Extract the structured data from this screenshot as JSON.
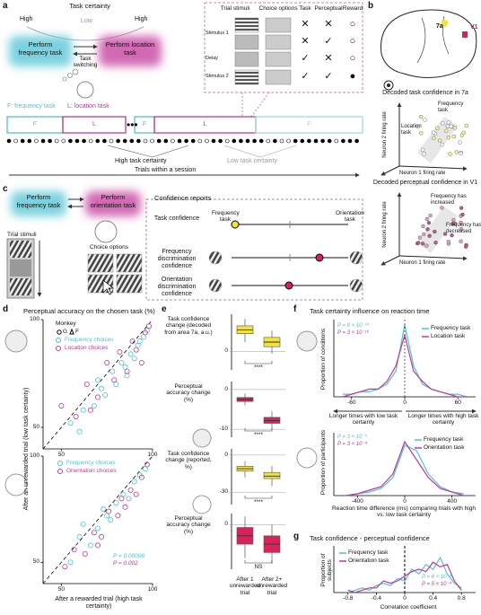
{
  "a": {
    "label": "a",
    "task_certainty": "Task certainty",
    "high_left": "High",
    "low": "Low",
    "high_right": "High",
    "box_frequency": "Perform frequency task",
    "switching": "Task switching",
    "box_location": "Perform location task",
    "table": {
      "headers": [
        "Trial stimuli",
        "Choice options",
        "Task",
        "Perceptual",
        "Reward"
      ],
      "row_labels": [
        "Stimulus 1",
        "Delay",
        "Stimulus 2"
      ],
      "cells": [
        [
          "✕",
          "✕",
          "○"
        ],
        [
          "✕",
          "✓",
          "○"
        ],
        [
          "✓",
          "✕",
          "○"
        ],
        [
          "✓",
          "✓",
          "●"
        ]
      ]
    },
    "legend_f": "F: frequency task",
    "legend_l": "L: location task",
    "blocks": [
      "F",
      "L",
      "F",
      "L",
      "F"
    ],
    "high_certainty": "High task certainty",
    "low_certainty": "Low task certainty",
    "trials": "Trials within a session"
  },
  "b": {
    "label": "b",
    "area_7a": "7a",
    "area_v1": "V1",
    "title_7a": "Decoded task confidence in 7a",
    "frequency_task": "Frequency task",
    "location_task": "Location task",
    "neuron2": "Neuron 2 firing rate",
    "neuron1": "Neuron 1 firing rate",
    "title_v1": "Decoded perceptual confidence in V1",
    "increased": "Frequency has increased",
    "decreased": "Frequency has decreased"
  },
  "c": {
    "label": "c",
    "box_frequency": "Perform frequency task",
    "box_orientation": "Perform orientation task",
    "trial_stimuli": "Trial stimuli",
    "choice_options": "Choice options",
    "reports": "Confidence reports",
    "task_confidence": "Task confidence",
    "frequency_task": "Frequency task",
    "orientation_task": "Orientation task",
    "freq_confidence": "Frequency discrimination confidence",
    "ori_confidence": "Orientation discrimination confidence"
  },
  "d": {
    "label": "d",
    "title": "Perceptual accuracy on the chosen task (%)",
    "ylabel": "After an unrewarded trial (low task certainty)",
    "xlabel": "After a rewarded trial (high task certainty)",
    "monkey": {
      "xlim": [
        40,
        100
      ],
      "ylim": [
        40,
        100
      ],
      "xticks": [
        50,
        100
      ],
      "yticks": [
        50,
        100
      ],
      "legend_title": "Monkey",
      "subjects": [
        "G",
        "F"
      ],
      "series": [
        {
          "name": "Frequency choices",
          "color": "#4fc3d4",
          "x": [
            55,
            62,
            68,
            70,
            74,
            78,
            80,
            83,
            85,
            88,
            90,
            92,
            95,
            97,
            60,
            72,
            86,
            93
          ],
          "y": [
            52,
            58,
            60,
            72,
            65,
            76,
            70,
            80,
            78,
            84,
            82,
            88,
            92,
            95,
            48,
            68,
            74,
            90
          ]
        },
        {
          "name": "Location choices",
          "color": "#c2389a",
          "x": [
            50,
            58,
            64,
            70,
            75,
            79,
            82,
            86,
            89,
            91,
            94,
            96,
            98,
            66
          ],
          "y": [
            60,
            55,
            70,
            64,
            80,
            72,
            85,
            76,
            90,
            86,
            80,
            94,
            97,
            58
          ]
        }
      ]
    },
    "human": {
      "xlim": [
        40,
        100
      ],
      "ylim": [
        40,
        100
      ],
      "xticks": [
        50,
        100
      ],
      "yticks": [
        50,
        100
      ],
      "series": [
        {
          "name": "Frequency choices",
          "color": "#4fc3d4",
          "x": [
            55,
            60,
            66,
            70,
            73,
            77,
            80,
            84,
            87,
            90,
            93,
            96,
            62,
            75
          ],
          "y": [
            50,
            62,
            58,
            66,
            75,
            70,
            78,
            82,
            80,
            88,
            91,
            94,
            68,
            72
          ]
        },
        {
          "name": "Orientation choices",
          "color": "#c2389a",
          "x": [
            52,
            57,
            63,
            68,
            72,
            76,
            81,
            85,
            88,
            91,
            94,
            97,
            70,
            83
          ],
          "y": [
            48,
            56,
            54,
            64,
            62,
            74,
            72,
            76,
            84,
            82,
            90,
            96,
            58,
            80
          ]
        }
      ],
      "p_values": [
        "P = 0.00008",
        "P = 0.002"
      ]
    }
  },
  "e": {
    "label": "e",
    "xlabels": [
      "After 1 unrewarded trial",
      "After 2+ unrewarded trial"
    ],
    "plots": [
      {
        "ylabel": "Task confidence change (decoded from area 7a, a.u.)",
        "ylim": [
          -0.4,
          0.8
        ],
        "yticks": [
          0
        ],
        "color": "#f2e33b",
        "significance": "****",
        "boxes": [
          {
            "low": 0.2,
            "q1": 0.38,
            "median": 0.46,
            "q3": 0.55,
            "high": 0.7
          },
          {
            "low": -0.05,
            "q1": 0.1,
            "median": 0.2,
            "q3": 0.3,
            "high": 0.45
          }
        ]
      },
      {
        "ylabel": "Perceptual accuracy change (%)",
        "ylim": [
          -12,
          2
        ],
        "yticks": [
          0,
          -10
        ],
        "color": "#d6245a",
        "significance": "****",
        "boxes": [
          {
            "low": -4,
            "q1": -3,
            "median": -2.5,
            "q3": -2,
            "high": -1
          },
          {
            "low": -10,
            "q1": -8.5,
            "median": -7.8,
            "q3": -7,
            "high": -5.5
          }
        ]
      },
      {
        "ylabel": "Task confidence change (reported, %)",
        "ylim": [
          -40,
          5
        ],
        "yticks": [
          0,
          -30
        ],
        "color": "#f2e33b",
        "significance": "****",
        "boxes": [
          {
            "low": -18,
            "q1": -13,
            "median": -11,
            "q3": -9,
            "high": -5
          },
          {
            "low": -25,
            "q1": -19,
            "median": -17,
            "q3": -14,
            "high": -9
          }
        ]
      },
      {
        "ylabel": "Perceptual accuracy change (%)",
        "ylim": [
          -16,
          4
        ],
        "yticks": [
          0
        ],
        "color": "#d6245a",
        "significance": "NS",
        "boxes": [
          {
            "low": -12,
            "q1": -7,
            "median": -4,
            "q3": -1,
            "high": 3
          },
          {
            "low": -14,
            "q1": -10,
            "median": -7,
            "q3": -4,
            "high": 0
          }
        ]
      }
    ]
  },
  "f": {
    "label": "f",
    "title": "Task certainty influence on reaction time",
    "longer_low": "Longer times with low task certainty",
    "longer_high": "Longer times with high task certainty",
    "monkey": {
      "ylabel": "Proportion of conditions",
      "xlim": [
        -80,
        80
      ],
      "ylim": [
        0,
        0.3
      ],
      "xticks": [
        -60,
        0,
        60
      ],
      "x": [
        -70,
        -60,
        -50,
        -40,
        -30,
        -20,
        -10,
        0,
        10,
        20,
        30,
        40,
        50,
        60,
        70
      ],
      "series": [
        {
          "name": "Frequency task",
          "color": "#4fc3d4",
          "values": [
            0.01,
            0.01,
            0.02,
            0.02,
            0.03,
            0.05,
            0.1,
            0.28,
            0.12,
            0.05,
            0.03,
            0.02,
            0.01,
            0.01,
            0
          ]
        },
        {
          "name": "Location task",
          "color": "#c2389a",
          "values": [
            0,
            0.01,
            0.02,
            0.03,
            0.03,
            0.06,
            0.12,
            0.24,
            0.1,
            0.06,
            0.03,
            0.02,
            0.01,
            0,
            0
          ]
        }
      ],
      "p_values": [
        "P = 8 × 10⁻¹⁶",
        "P = 3 × 10⁻¹⁶"
      ]
    },
    "human": {
      "ylabel": "Proportion of participants",
      "xlabel": "Reaction time difference (ms) comparing trials with high vs. low task certainty",
      "xlim": [
        -600,
        600
      ],
      "ylim": [
        0,
        0.35
      ],
      "xticks": [
        -400,
        0,
        400
      ],
      "x": [
        -500,
        -400,
        -300,
        -200,
        -100,
        0,
        100,
        200,
        300,
        400,
        500
      ],
      "series": [
        {
          "name": "Frequency task",
          "color": "#4fc3d4",
          "values": [
            0,
            0.01,
            0.02,
            0.04,
            0.1,
            0.28,
            0.25,
            0.12,
            0.05,
            0.02,
            0.01
          ]
        },
        {
          "name": "Orientation task",
          "color": "#c2389a",
          "values": [
            0,
            0.01,
            0.03,
            0.05,
            0.12,
            0.3,
            0.2,
            0.1,
            0.04,
            0.02,
            0
          ]
        }
      ],
      "p_values": [
        "P = 3 × 10⁻⁵",
        "P = 3 × 10⁻⁴"
      ]
    }
  },
  "g": {
    "label": "g",
    "title": "Task confidence - perceptual confidence",
    "ylabel": "Proportion of subjects",
    "xlabel": "Correlation coefficient",
    "xlim": [
      -1,
      1
    ],
    "ylim": [
      0,
      0.2
    ],
    "xticks": [
      -0.8,
      -0.4,
      0,
      0.4,
      0.8
    ],
    "x": [
      -0.8,
      -0.7,
      -0.6,
      -0.5,
      -0.4,
      -0.3,
      -0.2,
      -0.1,
      0,
      0.1,
      0.2,
      0.3,
      0.4,
      0.5,
      0.6,
      0.7,
      0.8
    ],
    "series": [
      {
        "name": "Frequency task",
        "color": "#4fc3d4",
        "values": [
          0,
          0.01,
          0.02,
          0.01,
          0.03,
          0.04,
          0.03,
          0.06,
          0.05,
          0.1,
          0.08,
          0.12,
          0.1,
          0.15,
          0.08,
          0.04,
          0.02
        ]
      },
      {
        "name": "Orientation task",
        "color": "#c2389a",
        "values": [
          0.01,
          0,
          0.01,
          0.02,
          0.02,
          0.05,
          0.04,
          0.05,
          0.07,
          0.09,
          0.1,
          0.09,
          0.13,
          0.11,
          0.12,
          0.05,
          0.01
        ]
      }
    ],
    "p_values": [
      "P = 8 × 10⁻⁴",
      "P = 5 × 10⁻⁴"
    ]
  }
}
